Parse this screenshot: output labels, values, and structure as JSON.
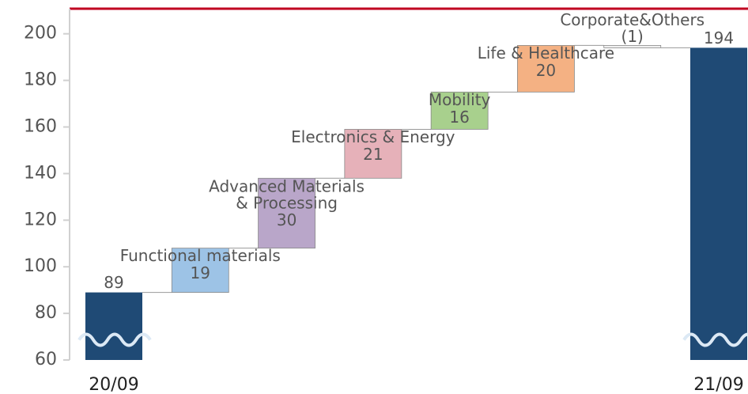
{
  "chart_data": {
    "type": "waterfall",
    "categories": [
      "20/09",
      "Functional materials",
      "Advanced Materials\n& Processing",
      "Electronics & Energy",
      "Mobility",
      "Life & Healthcare",
      "Corporate&Others",
      "21/09"
    ],
    "values": [
      89,
      19,
      30,
      21,
      16,
      20,
      -1,
      194
    ],
    "value_labels": [
      "89",
      "19",
      "30",
      "21",
      "16",
      "20",
      "(1)",
      "194"
    ],
    "measures": [
      "total",
      "relative",
      "relative",
      "relative",
      "relative",
      "relative",
      "relative",
      "total"
    ],
    "colors": [
      "#1f4a75",
      "#9dc3e6",
      "#b9a6c9",
      "#e6b1b9",
      "#a8d08d",
      "#f4b183",
      "#f2f2f2",
      "#1f4a75"
    ],
    "ylim": [
      60,
      210
    ],
    "yticks": [
      60,
      80,
      100,
      120,
      140,
      160,
      180,
      200
    ]
  }
}
